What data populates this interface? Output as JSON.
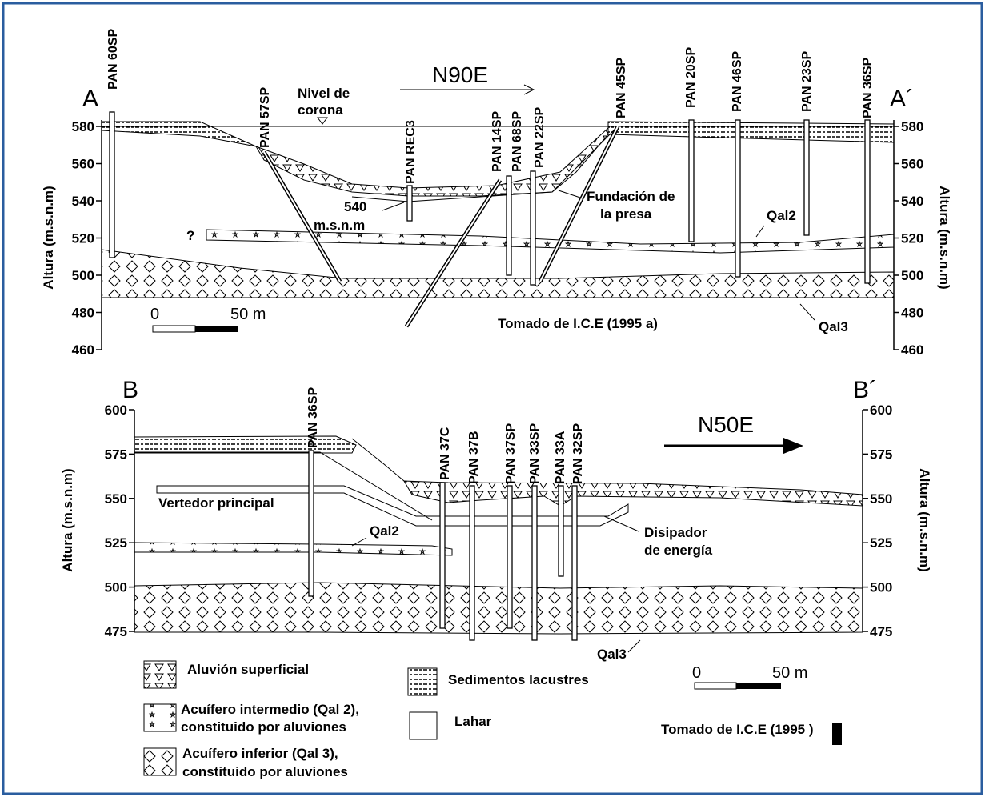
{
  "section_a": {
    "left_label": "A",
    "right_label": "A´",
    "direction": "N90E",
    "crest_label": [
      "Nivel de",
      "corona"
    ],
    "y_axis_title": "Altura (m.s.n.m)",
    "yticks": [
      580,
      560,
      540,
      520,
      500,
      480,
      460
    ],
    "boreholes": [
      "PAN 60SP",
      "PAN 57SP",
      "PAN REC3",
      "PAN 14SP",
      "PAN 68SP",
      "PAN 22SP",
      "PAN 45SP",
      "PAN 20SP",
      "PAN 46SP",
      "PAN 23SP",
      "PAN 36SP"
    ],
    "elevation_note": [
      "540",
      "m.s.n.m"
    ],
    "question": "?",
    "foundation_label": [
      "Fundación de",
      "la presa"
    ],
    "qal2": "Qal2",
    "qal3": "Qal3",
    "scale": [
      "0",
      "50 m"
    ],
    "source": "Tomado de I.C.E (1995 a)"
  },
  "section_b": {
    "left_label": "B",
    "right_label": "B´",
    "direction": "N50E",
    "y_axis_title": "Altura (m.s.n.m)",
    "yticks": [
      600,
      575,
      550,
      525,
      500,
      475
    ],
    "boreholes": [
      "PAN 36SP",
      "PAN 37C",
      "PAN 37B",
      "PAN 37SP",
      "PAN 33SP",
      "PAN 33A",
      "PAN 32SP"
    ],
    "spillway_label": "Vertedor principal",
    "dissipator_label": [
      "Disipador",
      "de energía"
    ],
    "qal2": "Qal2",
    "qal3": "Qal3",
    "scale": [
      "0",
      "50 m"
    ],
    "source": "Tomado de I.C.E (1995 )"
  },
  "legend": {
    "alluvium": "Aluvión superficial",
    "intermediate": [
      "Acuífero intermedio (Qal 2),",
      "constituido por aluviones"
    ],
    "lower": [
      "Acuífero inferior (Qal 3),",
      "constituido por aluviones"
    ],
    "lacustrine": "Sedimentos lacustres",
    "lahar": "Lahar"
  }
}
